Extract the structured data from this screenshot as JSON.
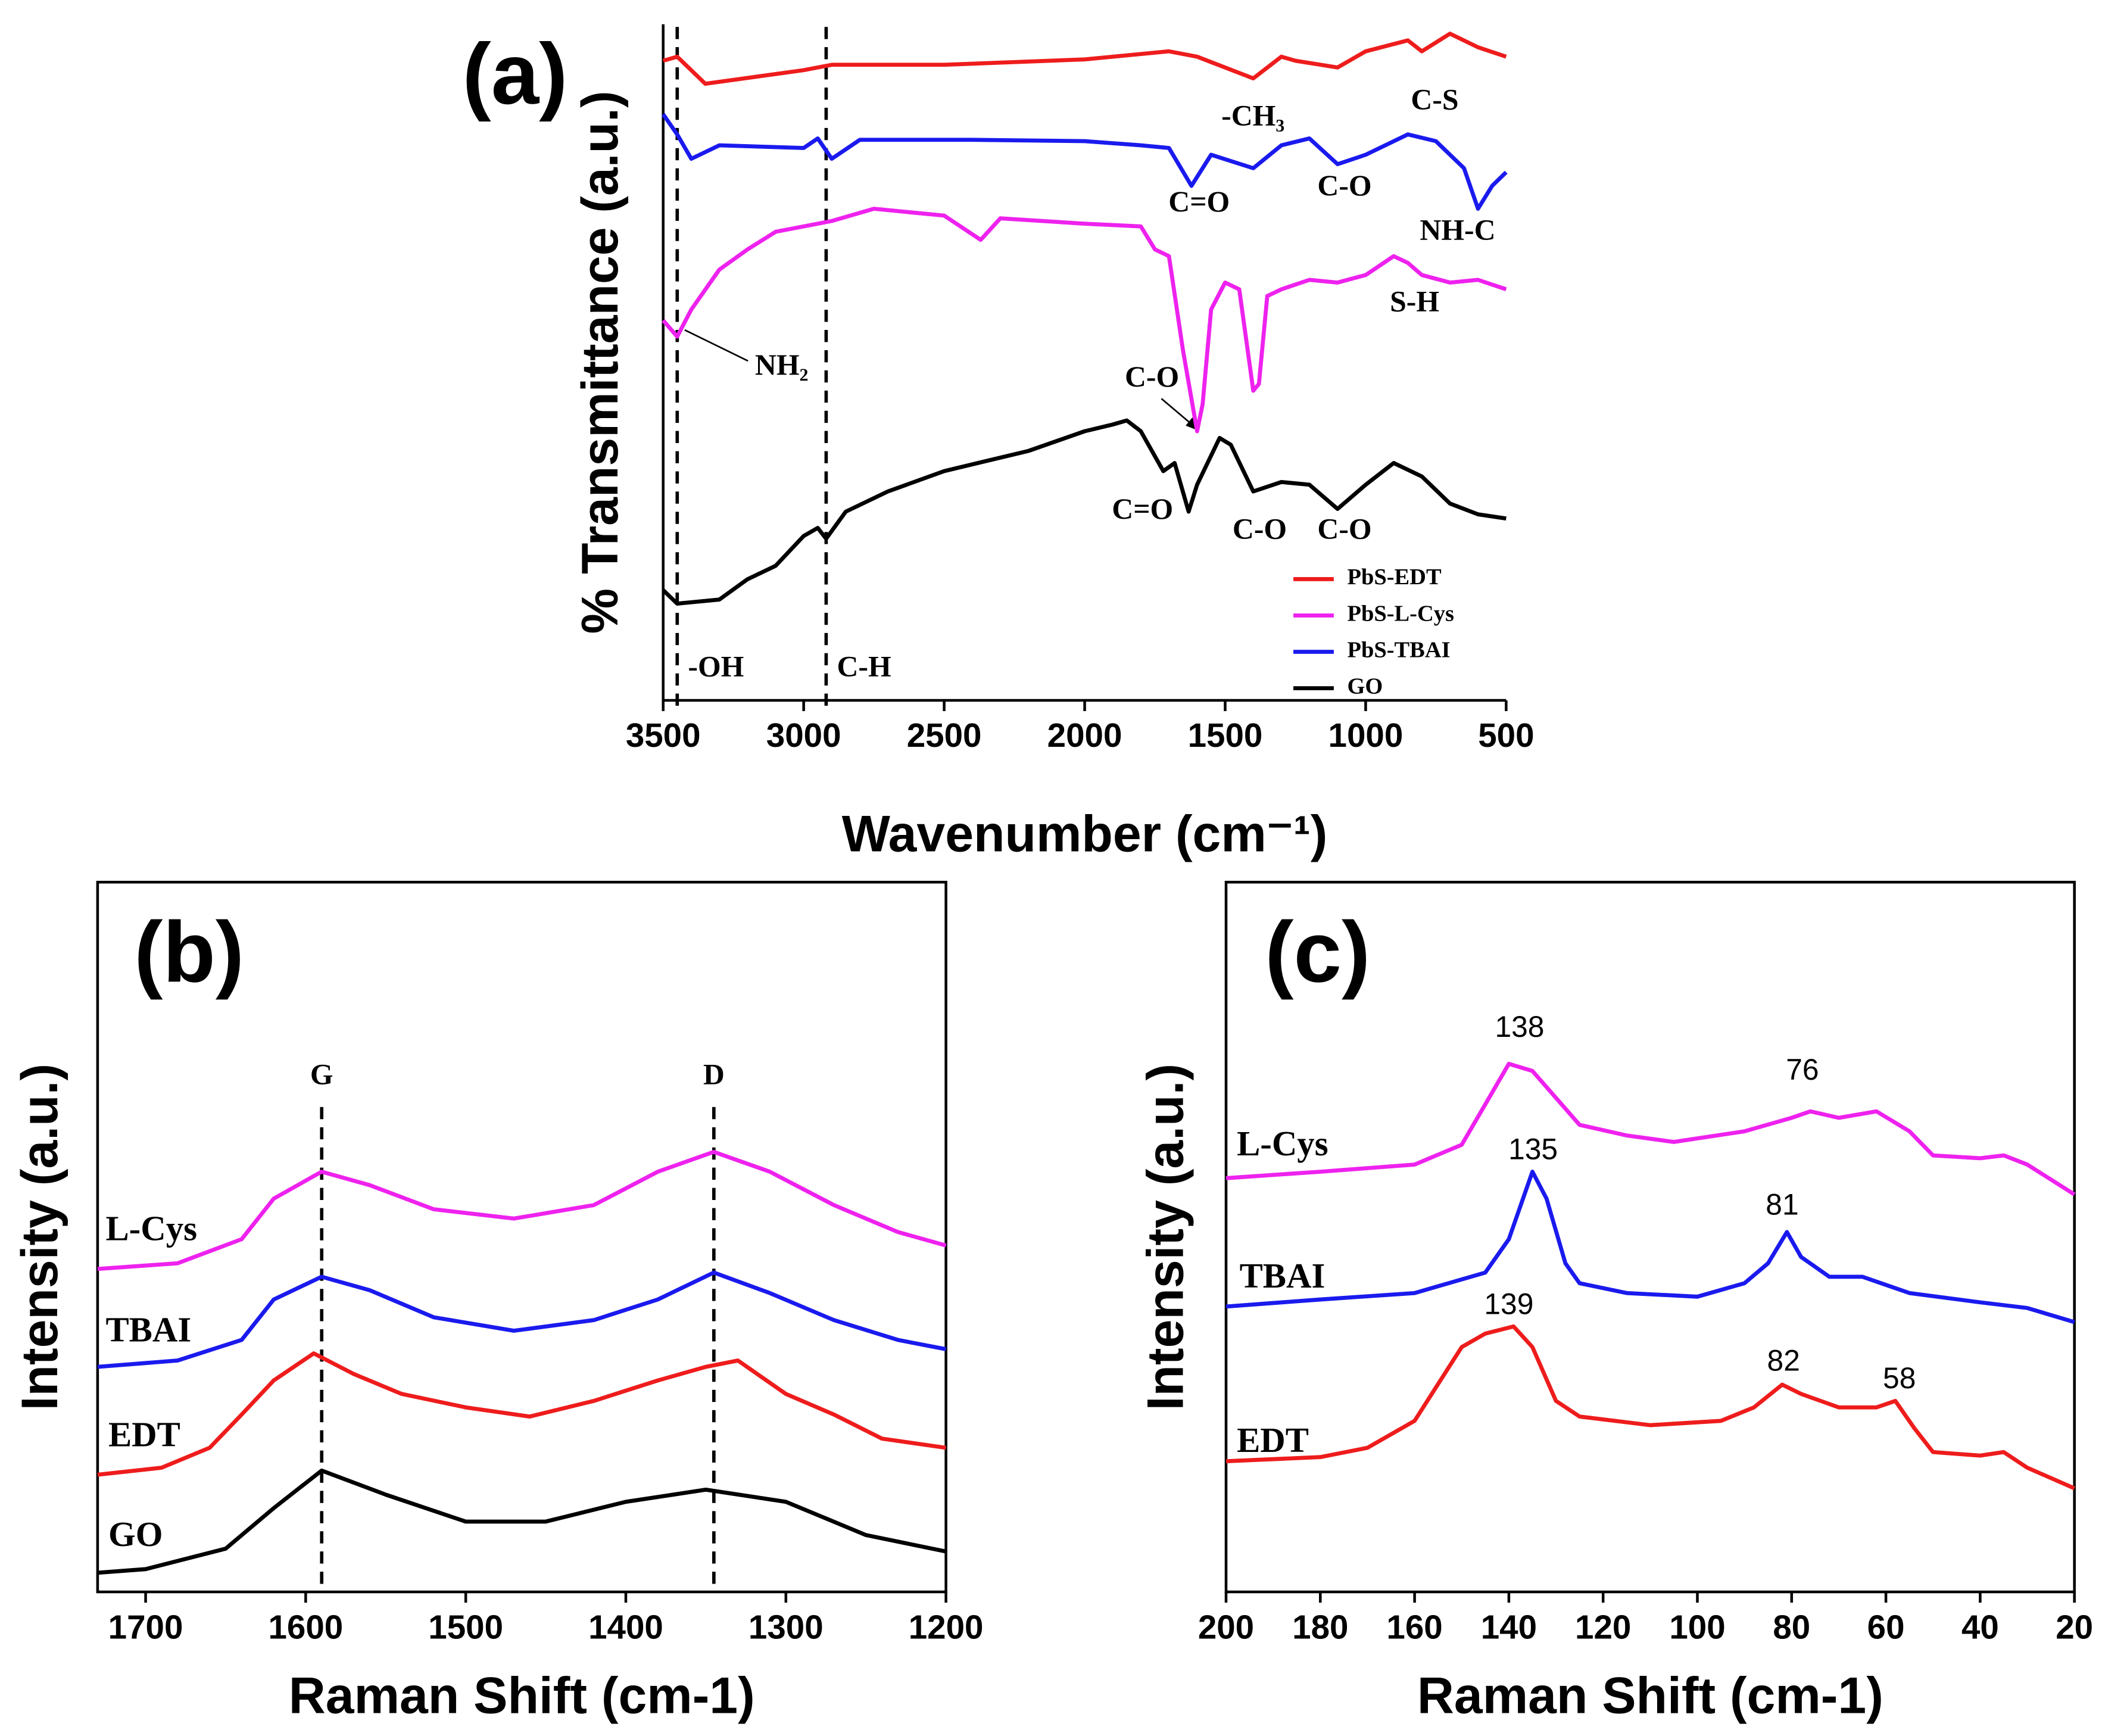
{
  "chart_data": [
    {
      "type": "line",
      "title": "(a)",
      "x_label": "Wavenumber (cm⁻¹)",
      "y_label": "% Transmittance (a.u.)",
      "xlim": [
        3500,
        500
      ],
      "xticks": [
        3500,
        3000,
        2500,
        2000,
        1500,
        1000,
        500
      ],
      "ylim": [
        0,
        100
      ],
      "legend": "lower right",
      "grid": false,
      "ref_lines": [
        {
          "value": 3450,
          "label": "-OH"
        },
        {
          "value": 2920,
          "label": "C-H"
        }
      ],
      "annotations": [
        "-CH₃",
        "C-S",
        "C=O",
        "C-O",
        "NH-C",
        "NH₂",
        "S-H",
        "C-O",
        "C=O",
        "C-O",
        "C-O"
      ],
      "series": [
        {
          "name": "PbS-EDT",
          "color": "#ee1c1c",
          "x": [
            3500,
            3450,
            3350,
            3000,
            2900,
            2500,
            2000,
            1700,
            1600,
            1400,
            1300,
            1250,
            1100,
            1000,
            850,
            800,
            700,
            600,
            500
          ],
          "values": [
            94.6,
            95.2,
            91.2,
            93.2,
            94.0,
            94.0,
            94.8,
            96.0,
            95.2,
            92.0,
            95.2,
            94.6,
            93.6,
            96.0,
            97.6,
            96.0,
            98.6,
            96.6,
            95.2
          ]
        },
        {
          "name": "PbS-L-Cys",
          "color": "#ee22ee",
          "x": [
            3500,
            3450,
            3400,
            3300,
            3200,
            3100,
            3000,
            2900,
            2750,
            2500,
            2370,
            2300,
            2000,
            1800,
            1750,
            1700,
            1650,
            1600,
            1580,
            1550,
            1500,
            1450,
            1400,
            1380,
            1350,
            1300,
            1200,
            1100,
            1000,
            900,
            850,
            800,
            700,
            600,
            500
          ],
          "values": [
            56.2,
            53.8,
            57.8,
            63.7,
            66.7,
            69.3,
            70.1,
            70.9,
            72.7,
            71.7,
            68.1,
            71.3,
            70.5,
            70.1,
            66.7,
            65.7,
            51.8,
            39.8,
            43.8,
            57.8,
            61.8,
            60.8,
            45.8,
            46.8,
            59.8,
            60.8,
            62.2,
            61.8,
            62.9,
            65.7,
            64.7,
            62.9,
            61.8,
            62.2,
            60.8
          ]
        },
        {
          "name": "PbS-TBAI",
          "color": "#1a1aee",
          "x": [
            3500,
            3450,
            3400,
            3300,
            3000,
            2950,
            2900,
            2800,
            2400,
            2000,
            1800,
            1700,
            1620,
            1550,
            1400,
            1300,
            1200,
            1100,
            1000,
            850,
            750,
            650,
            600,
            550,
            500
          ],
          "values": [
            86.7,
            83.7,
            80.1,
            82.1,
            81.7,
            83.1,
            80.1,
            82.9,
            82.9,
            82.7,
            82.1,
            81.7,
            76.1,
            80.7,
            78.7,
            82.1,
            83.1,
            79.3,
            80.7,
            83.7,
            82.7,
            78.7,
            72.7,
            76.1,
            78.1
          ]
        },
        {
          "name": "GO",
          "color": "#000000",
          "x": [
            3500,
            3450,
            3300,
            3200,
            3100,
            3000,
            2950,
            2920,
            2850,
            2700,
            2500,
            2200,
            2000,
            1900,
            1850,
            1800,
            1720,
            1680,
            1630,
            1600,
            1520,
            1480,
            1400,
            1300,
            1200,
            1100,
            1000,
            900,
            800,
            700,
            600,
            500
          ],
          "values": [
            16.3,
            14.3,
            14.9,
            17.9,
            19.9,
            24.3,
            25.5,
            23.9,
            27.9,
            30.9,
            33.9,
            36.9,
            39.8,
            40.8,
            41.4,
            39.8,
            33.9,
            35.1,
            27.9,
            31.9,
            38.8,
            37.8,
            30.9,
            32.3,
            31.9,
            28.3,
            31.9,
            35.1,
            33.1,
            29.1,
            27.5,
            26.9
          ]
        }
      ]
    },
    {
      "type": "line",
      "title": "(b)",
      "x_label": "Raman Shift (cm-1)",
      "y_label": "Intensity (a.u.)",
      "xlim": [
        1730,
        1200
      ],
      "xticks": [
        1700,
        1600,
        1500,
        1400,
        1300,
        1200
      ],
      "ylim": [
        0,
        100
      ],
      "grid": false,
      "ref_lines": [
        {
          "value": 1590,
          "label": "G"
        },
        {
          "value": 1345,
          "label": "D"
        }
      ],
      "series": [
        {
          "name": "L-Cys",
          "color": "#ee22ee",
          "x": [
            1730,
            1680,
            1640,
            1620,
            1590,
            1560,
            1520,
            1470,
            1420,
            1380,
            1345,
            1310,
            1270,
            1230,
            1200
          ],
          "values": [
            45.5,
            46.3,
            49.7,
            55.4,
            59.2,
            57.3,
            53.9,
            52.6,
            54.5,
            59.2,
            62.0,
            59.2,
            54.5,
            50.7,
            48.8
          ]
        },
        {
          "name": "TBAI",
          "color": "#1a1aee",
          "x": [
            1730,
            1680,
            1640,
            1620,
            1590,
            1560,
            1520,
            1470,
            1420,
            1380,
            1345,
            1310,
            1270,
            1230,
            1200
          ],
          "values": [
            31.7,
            32.6,
            35.5,
            41.2,
            44.4,
            42.5,
            38.7,
            36.8,
            38.3,
            41.2,
            45.0,
            42.1,
            38.3,
            35.5,
            34.2
          ]
        },
        {
          "name": "EDT",
          "color": "#ee1c1c",
          "x": [
            1730,
            1690,
            1660,
            1640,
            1620,
            1595,
            1570,
            1540,
            1500,
            1460,
            1420,
            1380,
            1350,
            1330,
            1300,
            1270,
            1240,
            1200
          ],
          "values": [
            16.5,
            17.5,
            20.3,
            25.0,
            29.8,
            33.6,
            30.7,
            27.9,
            26.0,
            24.7,
            26.9,
            29.8,
            31.7,
            32.6,
            27.9,
            25.0,
            21.6,
            20.3
          ]
        },
        {
          "name": "GO",
          "color": "#000000",
          "x": [
            1730,
            1700,
            1650,
            1620,
            1590,
            1550,
            1500,
            1450,
            1400,
            1350,
            1300,
            1250,
            1200
          ],
          "values": [
            2.7,
            3.2,
            6.1,
            11.8,
            17.1,
            13.7,
            9.9,
            9.9,
            12.7,
            14.4,
            12.7,
            8.0,
            5.7
          ]
        }
      ]
    },
    {
      "type": "line",
      "title": "(c)",
      "x_label": "Raman Shift (cm-1)",
      "y_label": "Intensity (a.u.)",
      "xlim": [
        200,
        20
      ],
      "xticks": [
        200,
        180,
        160,
        140,
        120,
        100,
        80,
        60,
        40,
        20
      ],
      "ylim": [
        0,
        100
      ],
      "grid": false,
      "annotations": [
        "138",
        "76",
        "135",
        "81",
        "139",
        "82",
        "58"
      ],
      "series": [
        {
          "name": "L-Cys",
          "color": "#ee22ee",
          "x": [
            200,
            180,
            160,
            150,
            145,
            140,
            135,
            130,
            125,
            115,
            105,
            90,
            80,
            76,
            70,
            62,
            55,
            50,
            40,
            35,
            30,
            20
          ],
          "values": [
            58.3,
            59.2,
            60.2,
            63.0,
            68.7,
            74.4,
            73.4,
            69.6,
            65.8,
            64.3,
            63.4,
            64.9,
            66.8,
            67.7,
            66.8,
            67.7,
            64.9,
            61.5,
            61.1,
            61.5,
            60.2,
            56.0
          ]
        },
        {
          "name": "TBAI",
          "color": "#1a1aee",
          "x": [
            200,
            180,
            160,
            145,
            140,
            135,
            132,
            128,
            125,
            115,
            100,
            90,
            85,
            81,
            78,
            72,
            65,
            55,
            40,
            30,
            20
          ],
          "values": [
            40.2,
            41.2,
            42.1,
            45.0,
            49.7,
            59.2,
            55.4,
            46.3,
            43.5,
            42.1,
            41.6,
            43.5,
            46.3,
            50.7,
            47.2,
            44.4,
            44.4,
            42.1,
            40.8,
            40.0,
            38.0
          ]
        },
        {
          "name": "EDT",
          "color": "#ee1c1c",
          "x": [
            200,
            180,
            170,
            160,
            150,
            145,
            139,
            135,
            130,
            125,
            110,
            95,
            88,
            82,
            78,
            70,
            62,
            58,
            54,
            50,
            40,
            35,
            30,
            20
          ],
          "values": [
            18.4,
            19.0,
            20.3,
            24.1,
            34.5,
            36.4,
            37.4,
            34.5,
            26.9,
            24.7,
            23.5,
            24.1,
            26.0,
            29.2,
            27.9,
            26.0,
            26.0,
            26.9,
            23.1,
            19.7,
            19.2,
            19.7,
            17.5,
            14.6
          ]
        }
      ]
    }
  ]
}
